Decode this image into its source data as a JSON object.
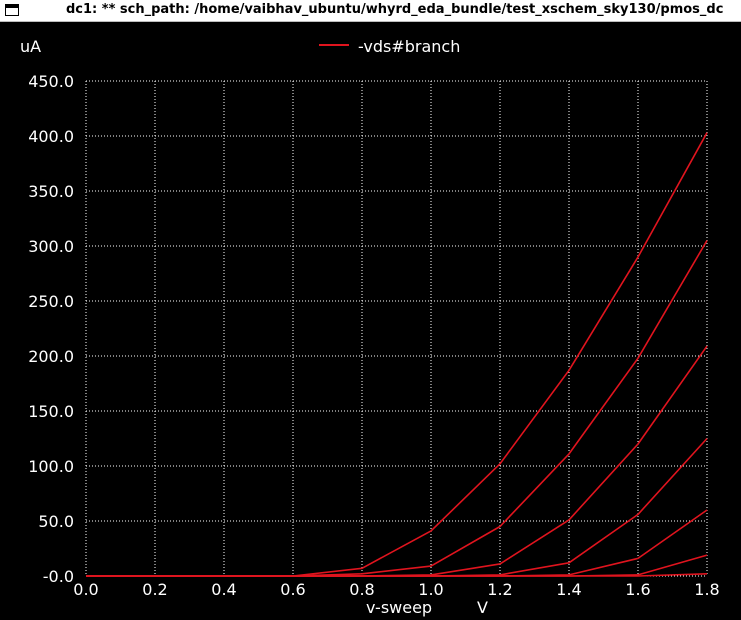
{
  "window": {
    "title": "dc1: ** sch_path: /home/vaibhav_ubuntu/whyrd_eda_bundle/test_xschem_sky130/pmos_dc"
  },
  "colors": {
    "background": "#000000",
    "grid": "#ffffff",
    "text": "#ffffff",
    "trace": "#e0141e"
  },
  "chart_data": {
    "type": "line",
    "title": "",
    "xlabel": "v-sweep",
    "xunit": "V",
    "ylabel": "uA",
    "xlim": [
      0.0,
      1.8
    ],
    "ylim": [
      -0.0,
      450.0
    ],
    "xticks": [
      "0.0",
      "0.2",
      "0.4",
      "0.6",
      "0.8",
      "1.0",
      "1.2",
      "1.4",
      "1.6",
      "1.8"
    ],
    "yticks": [
      "-0.0",
      "50.0",
      "100.0",
      "150.0",
      "200.0",
      "250.0",
      "300.0",
      "350.0",
      "400.0",
      "450.0"
    ],
    "grid": true,
    "grid_style": "dotted",
    "legend": {
      "position": "top-center",
      "entries": [
        "-vds#branch"
      ]
    },
    "x": [
      0.0,
      0.2,
      0.4,
      0.6,
      0.8,
      1.0,
      1.2,
      1.4,
      1.6,
      1.8
    ],
    "series": [
      {
        "values": [
          0,
          0,
          0,
          0,
          7,
          41,
          102,
          187,
          290,
          403
        ]
      },
      {
        "values": [
          0,
          0,
          0,
          0,
          2,
          9,
          45,
          111,
          198,
          305
        ]
      },
      {
        "values": [
          0,
          0,
          0,
          0,
          0,
          1,
          11,
          51,
          120,
          209
        ]
      },
      {
        "values": [
          0,
          0,
          0,
          0,
          0,
          0,
          1,
          12,
          56,
          125
        ]
      },
      {
        "values": [
          0,
          0,
          0,
          0,
          0,
          0,
          0,
          1,
          16,
          60
        ]
      },
      {
        "values": [
          0,
          0,
          0,
          0,
          0,
          0,
          0,
          0,
          1,
          19
        ]
      },
      {
        "values": [
          0,
          0,
          0,
          0,
          0,
          0,
          0,
          0,
          0,
          2
        ]
      }
    ]
  }
}
